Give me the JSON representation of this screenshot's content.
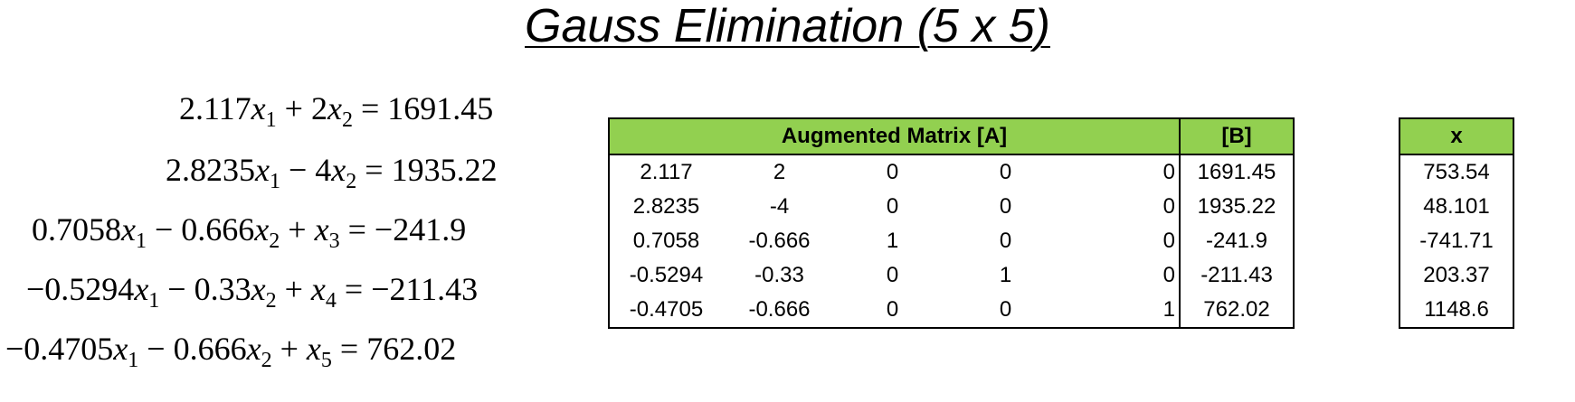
{
  "title": "Gauss Elimination (5 x 5)",
  "equations": [
    {
      "lhs": [
        {
          "c": "2.117",
          "v": "x",
          "s": "1"
        },
        {
          "op": "+"
        },
        {
          "c": "2",
          "v": "x",
          "s": "2"
        }
      ],
      "rhs": "1691.45"
    },
    {
      "lhs": [
        {
          "c": "2.8235",
          "v": "x",
          "s": "1"
        },
        {
          "op": "−"
        },
        {
          "c": "4",
          "v": "x",
          "s": "2"
        }
      ],
      "rhs": "1935.22"
    },
    {
      "lhs": [
        {
          "c": "0.7058",
          "v": "x",
          "s": "1"
        },
        {
          "op": "−"
        },
        {
          "c": "0.666",
          "v": "x",
          "s": "2"
        },
        {
          "op": "+"
        },
        {
          "c": "",
          "v": "x",
          "s": "3"
        }
      ],
      "rhs": "−241.9"
    },
    {
      "lhs": [
        {
          "c": "−0.5294",
          "v": "x",
          "s": "1"
        },
        {
          "op": "−"
        },
        {
          "c": "0.33",
          "v": "x",
          "s": "2"
        },
        {
          "op": "+"
        },
        {
          "c": "",
          "v": "x",
          "s": "4"
        }
      ],
      "rhs": "−211.43"
    },
    {
      "lhs": [
        {
          "c": "−0.4705",
          "v": "x",
          "s": "1"
        },
        {
          "op": "−"
        },
        {
          "c": "0.666",
          "v": "x",
          "s": "2"
        },
        {
          "op": "+"
        },
        {
          "c": "",
          "v": "x",
          "s": "5"
        }
      ],
      "rhs": "762.02"
    }
  ],
  "matrix": {
    "header": "Augmented Matrix [A]",
    "b_header": "[B]",
    "rows": [
      [
        "2.117",
        "2",
        "0",
        "0",
        "0",
        "1691.45"
      ],
      [
        "2.8235",
        "-4",
        "0",
        "0",
        "0",
        "1935.22"
      ],
      [
        "0.7058",
        "-0.666",
        "1",
        "0",
        "0",
        "-241.9"
      ],
      [
        "-0.5294",
        "-0.33",
        "0",
        "1",
        "0",
        "-211.43"
      ],
      [
        "-0.4705",
        "-0.666",
        "0",
        "0",
        "1",
        "762.02"
      ]
    ]
  },
  "solution": {
    "header": "x",
    "values": [
      "753.54",
      "48.101",
      "-741.71",
      "203.37",
      "1148.6"
    ]
  },
  "colors": {
    "header_fill": "#92d050",
    "border": "#000000"
  }
}
